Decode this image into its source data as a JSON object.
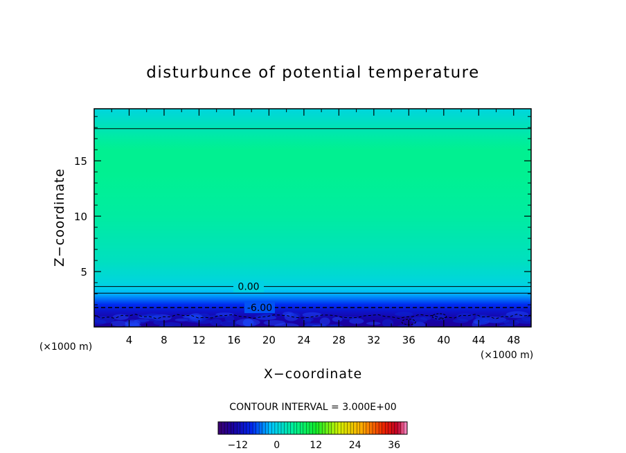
{
  "chart_data": {
    "type": "heatmap",
    "title": "disturbunce of potential temperature",
    "xlabel": "X−coordinate",
    "ylabel": "Z−coordinate",
    "x_unit_left": "(×1000 m)",
    "x_unit_right": "(×1000 m)",
    "xlim": [
      0,
      50
    ],
    "ylim": [
      0,
      19.7
    ],
    "x_ticks": [
      4,
      8,
      12,
      16,
      20,
      24,
      28,
      32,
      36,
      40,
      44,
      48
    ],
    "x_tick_labels": [
      "4",
      "8",
      "12",
      "16",
      "20",
      "24",
      "28",
      "32",
      "36",
      "40",
      "44",
      "48"
    ],
    "y_ticks": [
      5,
      10,
      15
    ],
    "y_tick_labels": [
      "5",
      "10",
      "15"
    ],
    "field_profile": {
      "z": [
        0,
        0.5,
        1,
        1.5,
        2,
        2.5,
        3,
        3.5,
        4,
        6,
        8,
        10,
        12,
        14,
        16,
        17,
        18,
        19,
        19.7
      ],
      "value": [
        -14,
        -13,
        -12,
        -10,
        -7.5,
        -5,
        -2.5,
        -0.5,
        0.5,
        2.5,
        3.5,
        4.5,
        5,
        5.5,
        5.5,
        4.5,
        3,
        1.5,
        0.5
      ]
    },
    "contour_interval": "CONTOUR INTERVAL = 3.000E+00",
    "contours": [
      {
        "value": 0,
        "label": "0.00",
        "z": [
          3.65,
          17.9
        ],
        "style": "solid"
      },
      {
        "value": -3,
        "label": "",
        "z": [
          3.05
        ],
        "style": "solid"
      },
      {
        "value": -6,
        "label": "-6.00",
        "z": [
          1.75
        ],
        "style": "dashed"
      },
      {
        "value": -9,
        "label": "",
        "z": [
          0.95
        ],
        "style": "dashed"
      }
    ],
    "colorbar": {
      "min": -18,
      "max": 40,
      "ticks": [
        -12,
        0,
        12,
        24,
        36
      ],
      "tick_labels": [
        "−12",
        "0",
        "12",
        "24",
        "36"
      ]
    }
  }
}
